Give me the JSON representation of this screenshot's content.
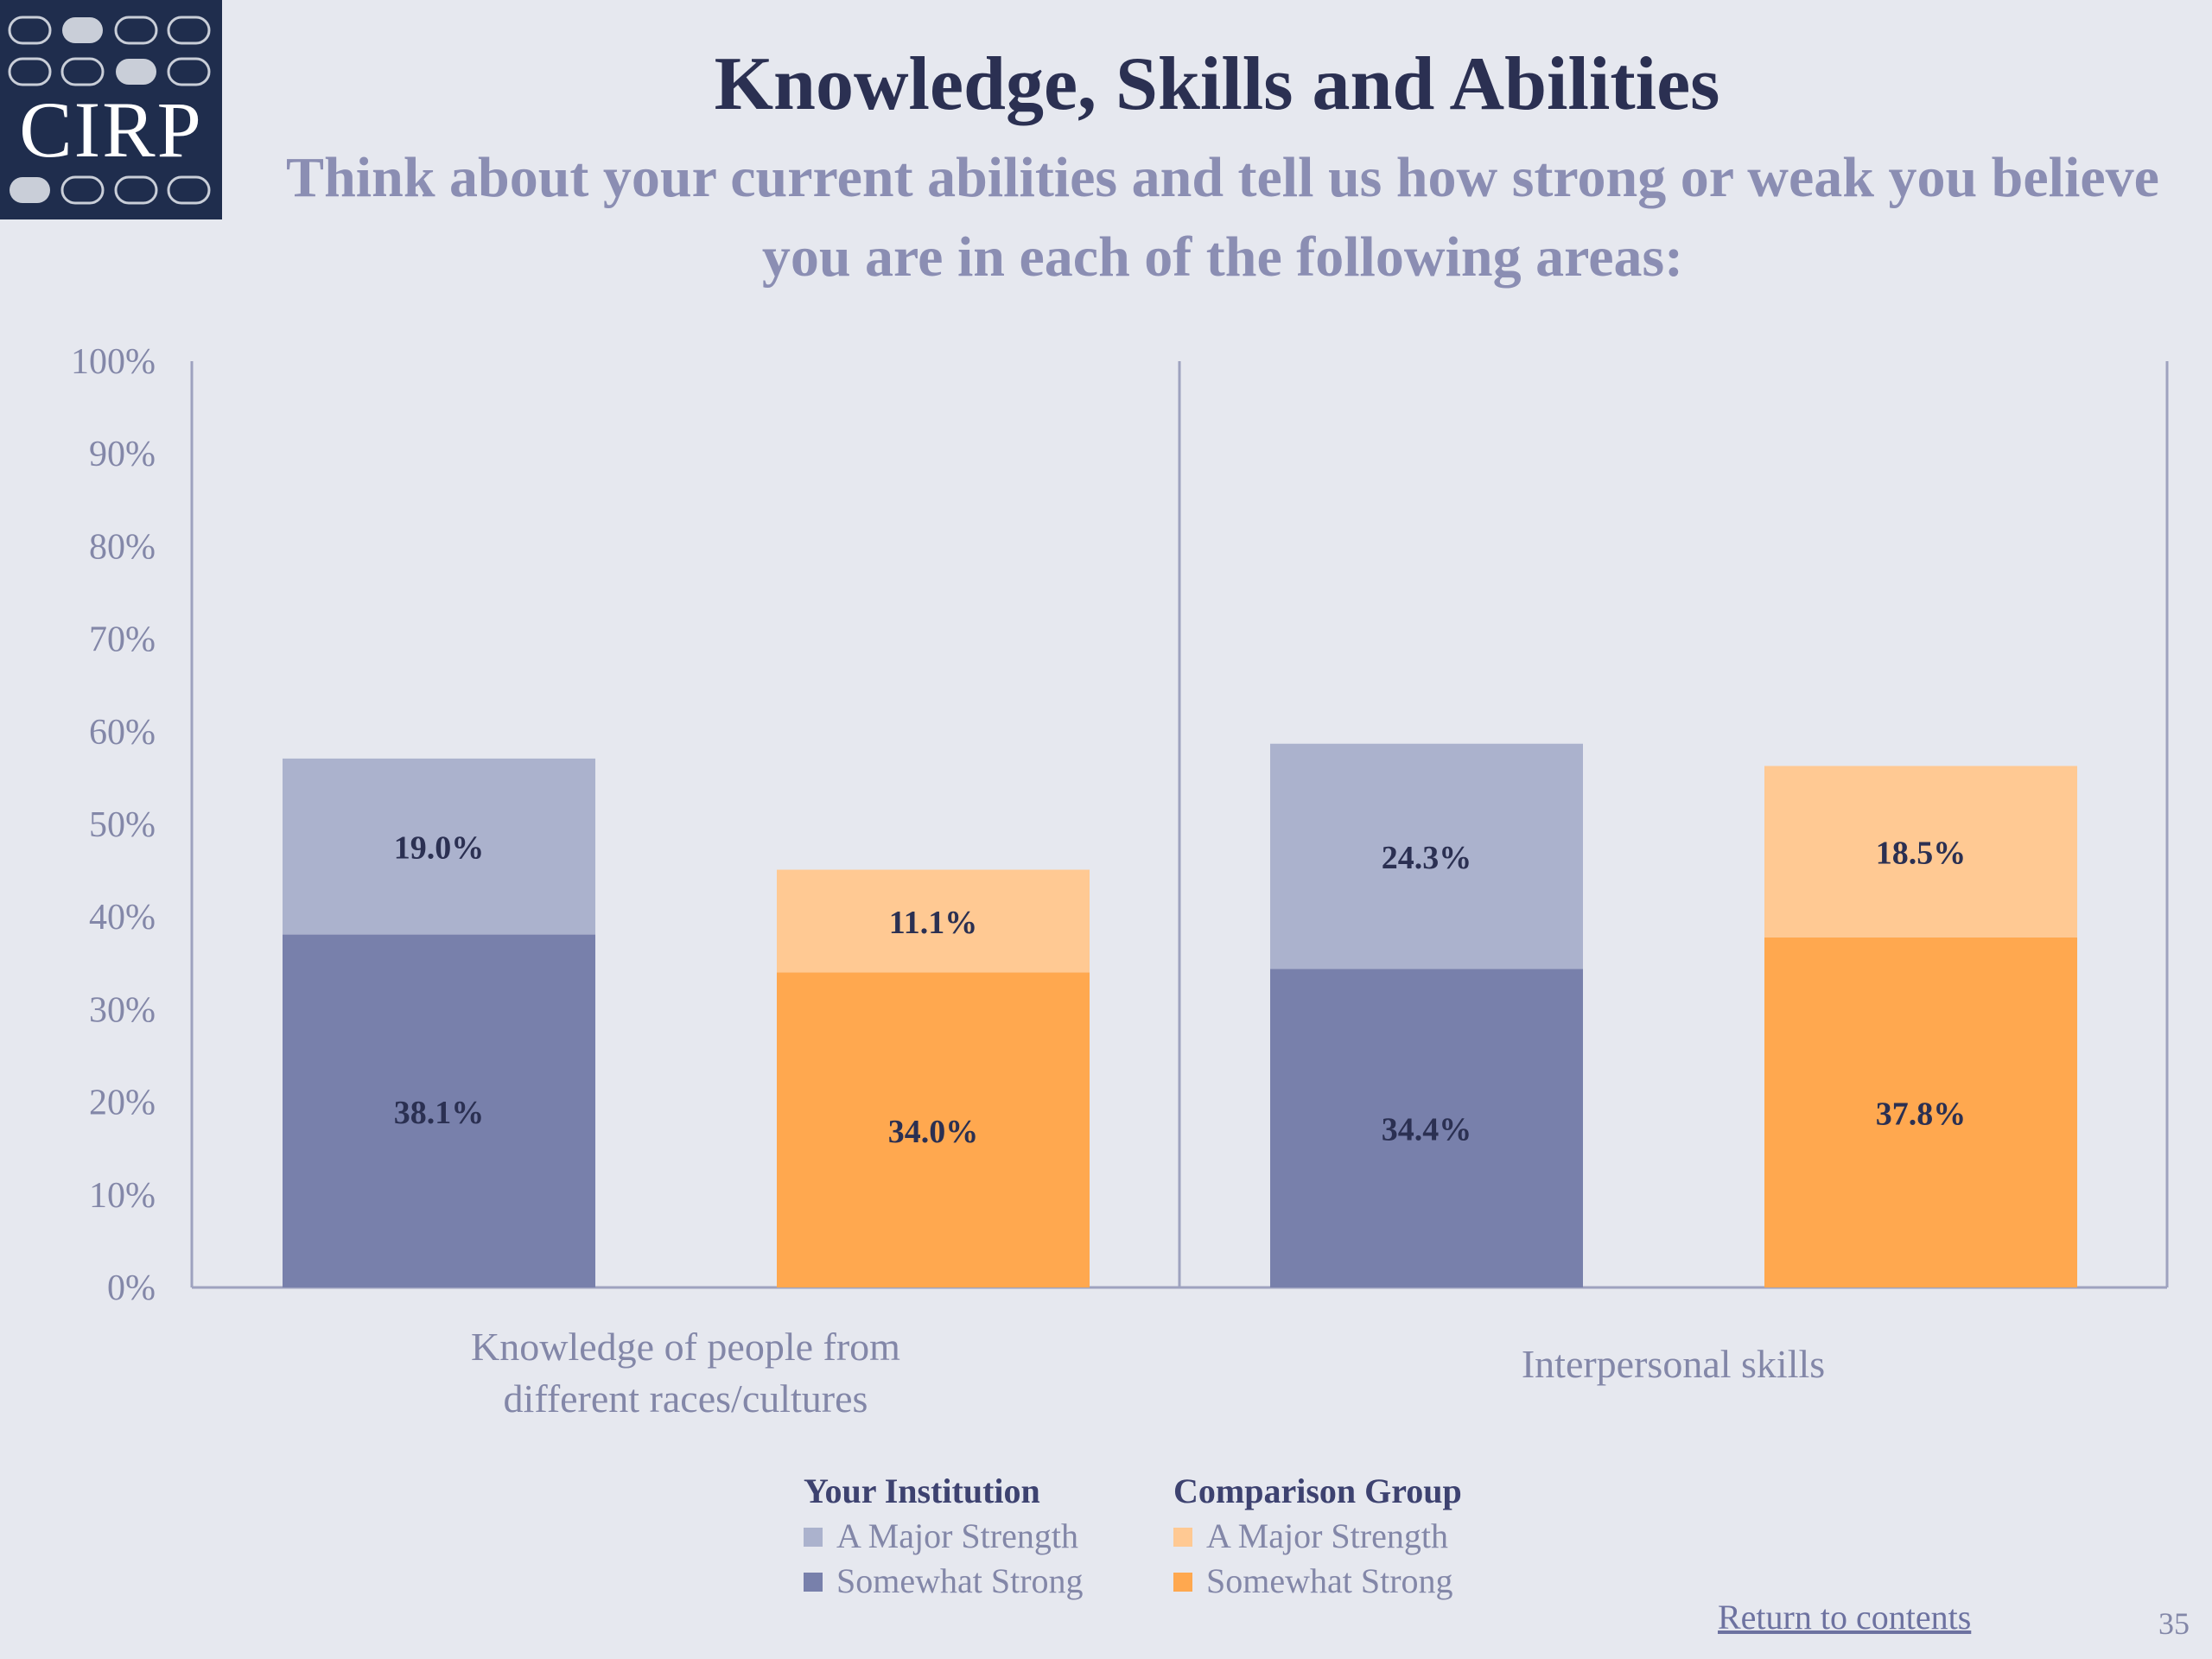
{
  "logo": {
    "text": "CIRP"
  },
  "header": {
    "title": "Knowledge, Skills and Abilities",
    "subtitle": "Think about your current abilities and tell us how strong or weak you believe you are in each of the following areas:"
  },
  "chart_data": {
    "type": "bar",
    "stacked": true,
    "title": "Knowledge, Skills and Abilities",
    "ylim": [
      0,
      100
    ],
    "yticks": [
      "0%",
      "10%",
      "20%",
      "30%",
      "40%",
      "50%",
      "60%",
      "70%",
      "80%",
      "90%",
      "100%"
    ],
    "categories": [
      {
        "label_lines": [
          "Knowledge of people from",
          "different races/cultures"
        ]
      },
      {
        "label_lines": [
          "Interpersonal skills"
        ]
      }
    ],
    "groups": [
      "Your Institution",
      "Comparison Group"
    ],
    "series": [
      {
        "name": "Somewhat Strong",
        "group": "Your Institution",
        "color": "#7880ab",
        "values": [
          38.1,
          34.4
        ],
        "labels": [
          "38.1%",
          "34.4%"
        ]
      },
      {
        "name": "A Major Strength",
        "group": "Your Institution",
        "color": "#abb2cd",
        "values": [
          19.0,
          24.3
        ],
        "labels": [
          "19.0%",
          "24.3%"
        ]
      },
      {
        "name": "Somewhat Strong",
        "group": "Comparison Group",
        "color": "#ffa84f",
        "values": [
          34.0,
          37.8
        ],
        "labels": [
          "34.0%",
          "37.8%"
        ]
      },
      {
        "name": "A Major Strength",
        "group": "Comparison Group",
        "color": "#ffc993",
        "values": [
          11.1,
          18.5
        ],
        "labels": [
          "11.1%",
          "18.5%"
        ]
      }
    ],
    "legend": "bottom"
  },
  "legend": {
    "institution": {
      "title": "Your Institution",
      "items": [
        {
          "label": "A Major Strength",
          "color": "#abb2cd"
        },
        {
          "label": "Somewhat Strong",
          "color": "#7880ab"
        }
      ]
    },
    "comparison": {
      "title": "Comparison Group",
      "items": [
        {
          "label": "A Major Strength",
          "color": "#ffc993"
        },
        {
          "label": "Somewhat Strong",
          "color": "#ffa84f"
        }
      ]
    }
  },
  "footer": {
    "return_link": "Return to contents",
    "page_number": "35"
  }
}
